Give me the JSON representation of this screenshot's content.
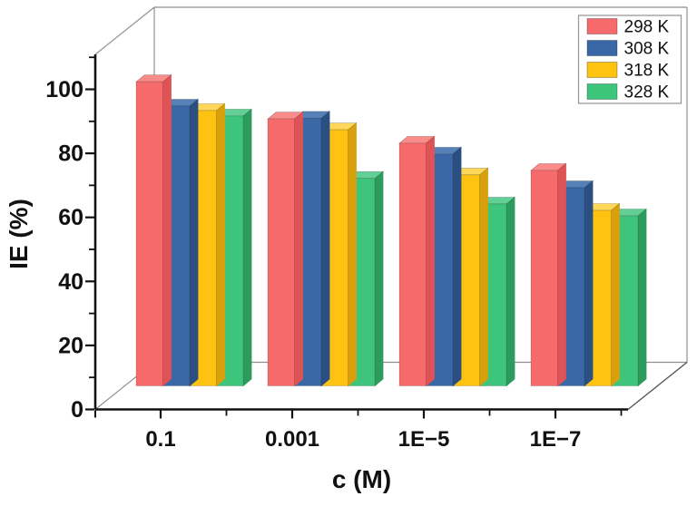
{
  "chart_data": {
    "type": "bar",
    "variant": "3d-grouped-bars",
    "title": "",
    "xlabel": "c (M)",
    "ylabel": "IE (%)",
    "categories": [
      "0.1",
      "0.001",
      "1E−5",
      "1E−7"
    ],
    "series": [
      {
        "name": "298 K",
        "values": [
          95.0,
          83.4,
          75.8,
          67.3
        ],
        "color": "#F76A6C",
        "color_top": "#F98B8B",
        "color_side": "#DE5456"
      },
      {
        "name": "308 K",
        "values": [
          87.4,
          83.6,
          72.4,
          61.9
        ],
        "color": "#3A68A6",
        "color_top": "#5581B8",
        "color_side": "#2C4F82"
      },
      {
        "name": "318 K",
        "values": [
          86.0,
          80.0,
          65.9,
          54.8
        ],
        "color": "#FEC311",
        "color_top": "#FED75B",
        "color_side": "#D8A00C"
      },
      {
        "name": "328 K",
        "values": [
          84.3,
          64.8,
          56.8,
          53.1
        ],
        "color": "#3EC57C",
        "color_top": "#62D094",
        "color_side": "#2E9B5E"
      }
    ],
    "ylim": [
      0,
      110
    ],
    "y_major_ticks": [
      0,
      20,
      40,
      60,
      80,
      100
    ],
    "y_minor_tick_step": 10,
    "legend": {
      "position": "top-right",
      "entries": [
        "298 K",
        "308 K",
        "318 K",
        "328 K"
      ]
    },
    "grid": false,
    "axis_color": "#111111",
    "frame_color": "#8F8F8F",
    "background_color": "#FFFFFF"
  }
}
